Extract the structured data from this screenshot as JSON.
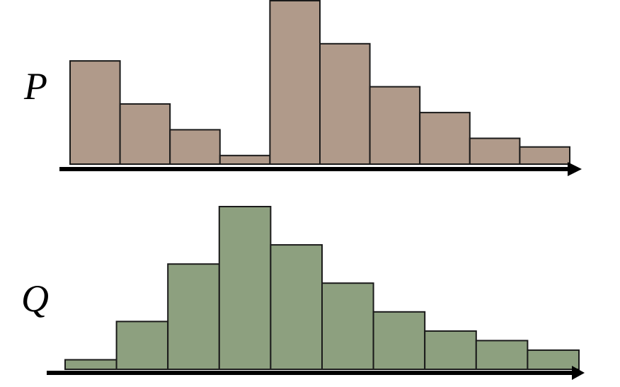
{
  "chart_data": [
    {
      "type": "bar",
      "label": "P",
      "color": "#b09a8a",
      "values": [
        12,
        7,
        4,
        1,
        19,
        14,
        9,
        6,
        3,
        2
      ],
      "ylim": [
        0,
        19
      ],
      "grid": false
    },
    {
      "type": "bar",
      "label": "Q",
      "color": "#8da07f",
      "values": [
        1,
        5,
        11,
        17,
        13,
        9,
        6,
        4,
        3,
        2
      ],
      "ylim": [
        0,
        17
      ],
      "grid": false
    }
  ]
}
